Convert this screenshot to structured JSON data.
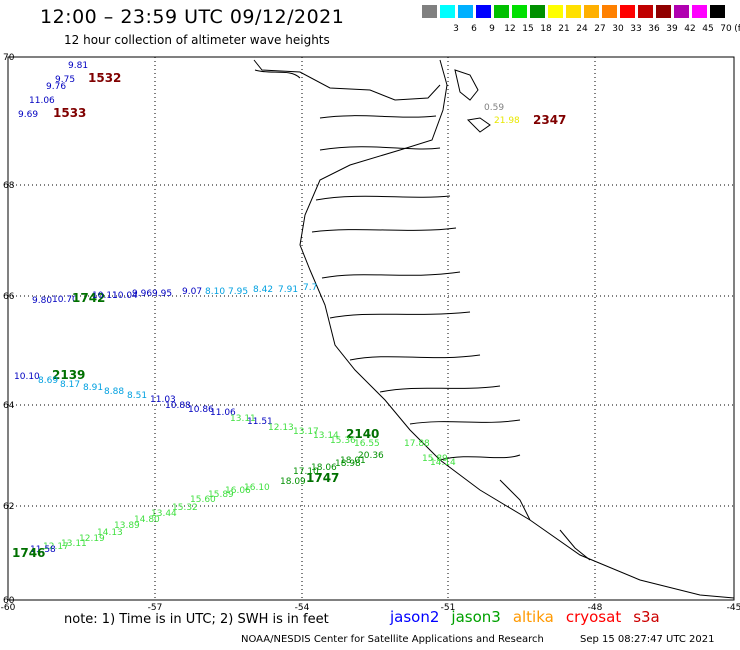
{
  "header": {
    "title": "12:00 – 23:59 UTC 09/12/2021",
    "subtitle": "12 hour collection of altimeter wave heights"
  },
  "legend": {
    "unit_label": "(ft)",
    "bins": [
      {
        "label": "",
        "color": "#808080"
      },
      {
        "label": "3",
        "color": "#00ffff"
      },
      {
        "label": "6",
        "color": "#00b0ff"
      },
      {
        "label": "9",
        "color": "#0000ff"
      },
      {
        "label": "12",
        "color": "#00c000"
      },
      {
        "label": "15",
        "color": "#00e000"
      },
      {
        "label": "18",
        "color": "#009000"
      },
      {
        "label": "21",
        "color": "#ffff00"
      },
      {
        "label": "24",
        "color": "#ffe000"
      },
      {
        "label": "27",
        "color": "#ffb000"
      },
      {
        "label": "30",
        "color": "#ff8000"
      },
      {
        "label": "33",
        "color": "#ff0000"
      },
      {
        "label": "36",
        "color": "#c00000"
      },
      {
        "label": "39",
        "color": "#900000"
      },
      {
        "label": "42",
        "color": "#b000b0"
      },
      {
        "label": "45",
        "color": "#ff00ff"
      },
      {
        "label": "70",
        "color": "#000000"
      }
    ]
  },
  "map": {
    "lon_ticks": [
      "-60",
      "-57",
      "-54",
      "-51",
      "-48",
      "-45"
    ],
    "lat_ticks": [
      "70",
      "68",
      "66",
      "64",
      "62",
      "60"
    ],
    "grid": true
  },
  "observations": [
    {
      "text": "9.81",
      "color": "#0000c0"
    },
    {
      "text": "9.75",
      "color": "#0000c0"
    },
    {
      "text": "9.76",
      "color": "#0000c0"
    },
    {
      "text": "11.06",
      "color": "#0000c0"
    },
    {
      "text": "9.69",
      "color": "#0000c0"
    },
    {
      "text": "1532",
      "color": "#800000",
      "big": true
    },
    {
      "text": "1533",
      "color": "#800000",
      "big": true
    },
    {
      "text": "0.59",
      "color": "#808080"
    },
    {
      "text": "21.98",
      "color": "#e8e800"
    },
    {
      "text": "2347",
      "color": "#800000",
      "big": true
    },
    {
      "text": "9.80",
      "color": "#0000c0"
    },
    {
      "text": "10.70",
      "color": "#0000c0"
    },
    {
      "text": "1742",
      "color": "#007000",
      "big": true
    },
    {
      "text": "10.11",
      "color": "#0000c0"
    },
    {
      "text": "10.04",
      "color": "#0000c0"
    },
    {
      "text": "9.96",
      "color": "#0000c0"
    },
    {
      "text": "9.95",
      "color": "#0000c0"
    },
    {
      "text": "9.07",
      "color": "#0000c0"
    },
    {
      "text": "8.10",
      "color": "#00a0e0"
    },
    {
      "text": "7.95",
      "color": "#00a0e0"
    },
    {
      "text": "8.42",
      "color": "#00a0e0"
    },
    {
      "text": "7.91",
      "color": "#00a0e0"
    },
    {
      "text": "7.7",
      "color": "#00a0e0"
    },
    {
      "text": "10.10",
      "color": "#0000c0"
    },
    {
      "text": "2139",
      "color": "#007000",
      "big": true
    },
    {
      "text": "8.69",
      "color": "#00a0e0"
    },
    {
      "text": "8.17",
      "color": "#00a0e0"
    },
    {
      "text": "8.91",
      "color": "#00a0e0"
    },
    {
      "text": "8.88",
      "color": "#00a0e0"
    },
    {
      "text": "8.51",
      "color": "#00a0e0"
    },
    {
      "text": "11.03",
      "color": "#0000c0"
    },
    {
      "text": "10.88",
      "color": "#0000c0"
    },
    {
      "text": "10.86",
      "color": "#0000c0"
    },
    {
      "text": "11.06",
      "color": "#0000c0"
    },
    {
      "text": "11.51",
      "color": "#0000c0"
    },
    {
      "text": "13.11",
      "color": "#40e040"
    },
    {
      "text": "12.13",
      "color": "#40e040"
    },
    {
      "text": "13.17",
      "color": "#40e040"
    },
    {
      "text": "13.14",
      "color": "#40e040"
    },
    {
      "text": "2140",
      "color": "#007000",
      "big": true
    },
    {
      "text": "15.36",
      "color": "#40e040"
    },
    {
      "text": "16.55",
      "color": "#40e040"
    },
    {
      "text": "17.88",
      "color": "#40e040"
    },
    {
      "text": "20.36",
      "color": "#009000"
    },
    {
      "text": "18.01",
      "color": "#009000"
    },
    {
      "text": "15.89",
      "color": "#40e040"
    },
    {
      "text": "14.14",
      "color": "#40e040"
    },
    {
      "text": "18.98",
      "color": "#009000"
    },
    {
      "text": "18.09",
      "color": "#009000"
    },
    {
      "text": "1747",
      "color": "#007000",
      "big": true
    },
    {
      "text": "17.10",
      "color": "#009000"
    },
    {
      "text": "18.06",
      "color": "#009000"
    },
    {
      "text": "16.10",
      "color": "#40e040"
    },
    {
      "text": "16.06",
      "color": "#40e040"
    },
    {
      "text": "15.89",
      "color": "#40e040"
    },
    {
      "text": "15.60",
      "color": "#40e040"
    },
    {
      "text": "15.32",
      "color": "#40e040"
    },
    {
      "text": "13.44",
      "color": "#40e040"
    },
    {
      "text": "14.80",
      "color": "#40e040"
    },
    {
      "text": "13.89",
      "color": "#40e040"
    },
    {
      "text": "14.13",
      "color": "#40e040"
    },
    {
      "text": "12.19",
      "color": "#40e040"
    },
    {
      "text": "13.11",
      "color": "#40e040"
    },
    {
      "text": "12.17",
      "color": "#40e040"
    },
    {
      "text": "11.58",
      "color": "#0000c0"
    },
    {
      "text": "1746",
      "color": "#007000",
      "big": true
    }
  ],
  "footer": {
    "note": "note:  1) Time is in UTC;  2) SWH is in feet",
    "satellites": [
      {
        "name": "jason2",
        "color": "#0000ff"
      },
      {
        "name": "jason3",
        "color": "#00a000"
      },
      {
        "name": "altika",
        "color": "#ff9900"
      },
      {
        "name": "cryosat",
        "color": "#ff0000"
      },
      {
        "name": "s3a",
        "color": "#cc0000"
      }
    ],
    "credit": "NOAA/NESDIS Center for Satellite Applications and Research",
    "timestamp": "Sep 15 08:27:47 UTC 2021"
  }
}
